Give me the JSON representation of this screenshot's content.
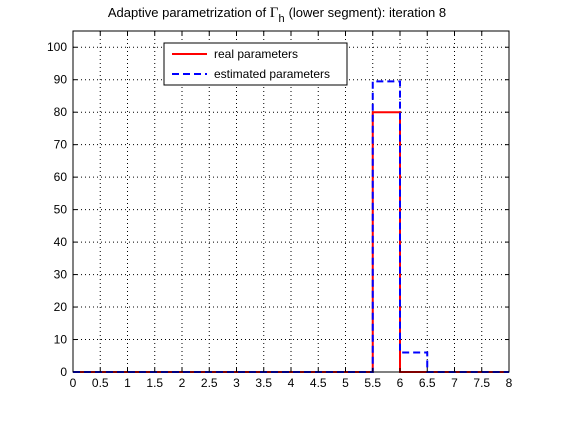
{
  "chart_data": {
    "type": "line",
    "title_main": "Adaptive parametrization of",
    "title_gamma": "Γ",
    "title_sub": "h",
    "title_rest": "(lower segment): iteration 8",
    "xlabel": "",
    "ylabel": "",
    "xlim": [
      0,
      8
    ],
    "ylim": [
      0,
      105
    ],
    "x_ticks": [
      "0",
      "0.5",
      "1",
      "1.5",
      "2",
      "2.5",
      "3",
      "3.5",
      "4",
      "4.5",
      "5",
      "5.5",
      "6",
      "6.5",
      "7",
      "7.5",
      "8"
    ],
    "y_ticks": [
      "0",
      "10",
      "20",
      "30",
      "40",
      "50",
      "60",
      "70",
      "80",
      "90",
      "100"
    ],
    "grid": true,
    "legend_position": "top-left",
    "series": [
      {
        "name": "real parameters",
        "color": "#ff0000",
        "style": "solid",
        "x": [
          0,
          5.5,
          5.5,
          6,
          6,
          8
        ],
        "y": [
          0,
          0,
          80,
          80,
          0,
          0
        ]
      },
      {
        "name": "estimated parameters",
        "color": "#0000ff",
        "style": "dashed",
        "x": [
          0,
          5.5,
          5.5,
          6,
          6,
          6.5,
          6.5,
          8
        ],
        "y": [
          0,
          0,
          89.5,
          89.5,
          6,
          6,
          0,
          0
        ]
      }
    ]
  }
}
